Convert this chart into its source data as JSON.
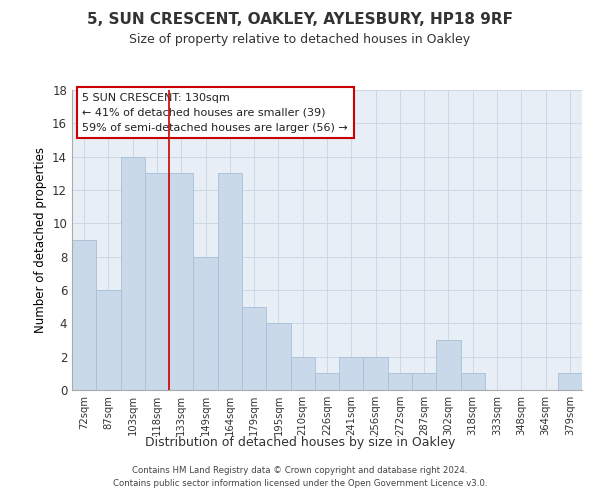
{
  "title1": "5, SUN CRESCENT, OAKLEY, AYLESBURY, HP18 9RF",
  "title2": "Size of property relative to detached houses in Oakley",
  "xlabel": "Distribution of detached houses by size in Oakley",
  "ylabel": "Number of detached properties",
  "categories": [
    "72sqm",
    "87sqm",
    "103sqm",
    "118sqm",
    "133sqm",
    "149sqm",
    "164sqm",
    "179sqm",
    "195sqm",
    "210sqm",
    "226sqm",
    "241sqm",
    "256sqm",
    "272sqm",
    "287sqm",
    "302sqm",
    "318sqm",
    "333sqm",
    "348sqm",
    "364sqm",
    "379sqm"
  ],
  "values": [
    9,
    6,
    14,
    13,
    13,
    8,
    13,
    5,
    4,
    2,
    1,
    2,
    2,
    1,
    1,
    3,
    1,
    0,
    0,
    0,
    1
  ],
  "bar_color": "#c9d9ea",
  "bar_edge_color": "#a8bfd4",
  "grid_color": "#cdd8e6",
  "background_color": "#e8eef6",
  "annotation_text": "5 SUN CRESCENT: 130sqm\n← 41% of detached houses are smaller (39)\n59% of semi-detached houses are larger (56) →",
  "annotation_box_color": "#ffffff",
  "annotation_box_edge": "#cc0000",
  "footer_text": "Contains HM Land Registry data © Crown copyright and database right 2024.\nContains public sector information licensed under the Open Government Licence v3.0.",
  "ylim": [
    0,
    18
  ],
  "yticks": [
    0,
    2,
    4,
    6,
    8,
    10,
    12,
    14,
    16,
    18
  ],
  "red_line_x": 3.5
}
